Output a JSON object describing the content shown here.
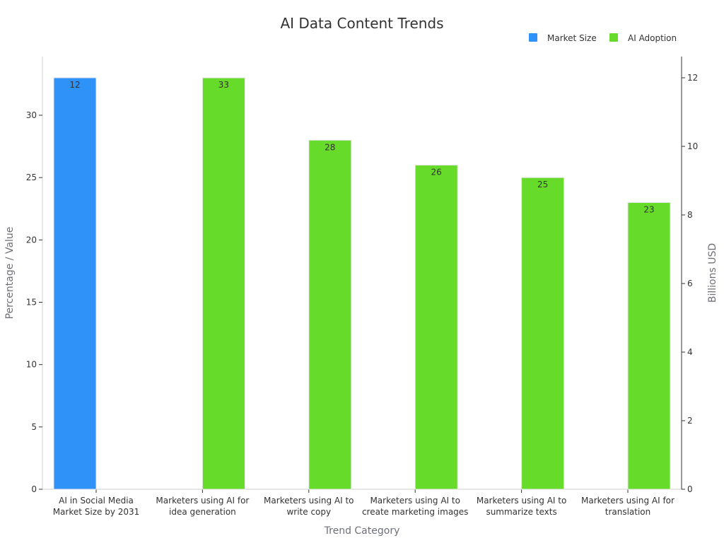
{
  "chart_data": {
    "type": "bar",
    "title": "AI Data Content Trends",
    "xlabel": "Trend Category",
    "ylabel_left": "Percentage / Value",
    "ylabel_right": "Billions USD",
    "categories": [
      [
        "AI in Social Media",
        "Market Size by 2031"
      ],
      [
        "Marketers using AI for",
        "idea generation"
      ],
      [
        "Marketers using AI to",
        "write copy"
      ],
      [
        "Marketers using AI to",
        "create marketing images"
      ],
      [
        "Marketers using AI to",
        "summarize texts"
      ],
      [
        "Marketers using AI for",
        "translation"
      ]
    ],
    "series": [
      {
        "name": "Market Size",
        "color": "#2f92f8",
        "axis": "right",
        "values": [
          12,
          null,
          null,
          null,
          null,
          null
        ]
      },
      {
        "name": "AI Adoption",
        "color": "#67db29",
        "axis": "left",
        "values": [
          null,
          33,
          28,
          26,
          25,
          23
        ]
      }
    ],
    "ylim_left": [
      0,
      35
    ],
    "yticks_left": [
      0,
      5,
      10,
      15,
      20,
      25,
      30
    ],
    "ylim_right": [
      0,
      12.6
    ],
    "yticks_right": [
      0,
      2,
      4,
      6,
      8,
      10,
      12
    ],
    "legend_position": "top-right",
    "grid": false
  }
}
